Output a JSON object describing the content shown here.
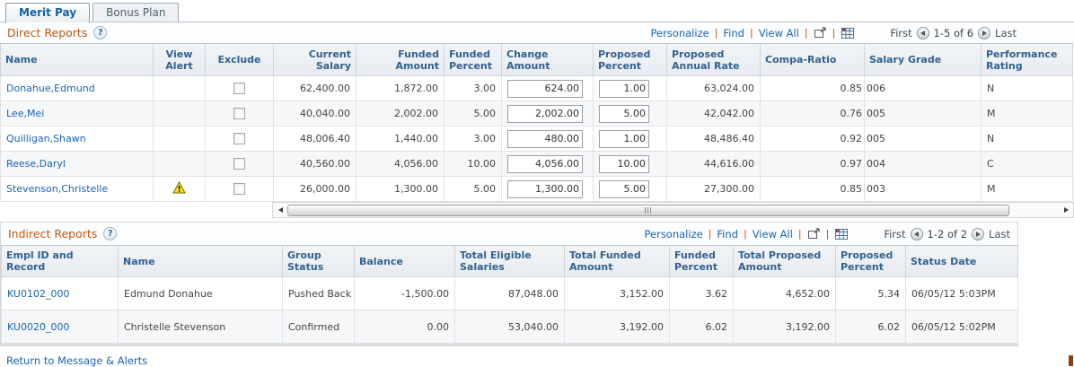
{
  "tabs": [
    {
      "label": "Merit Pay"
    },
    {
      "label": "Bonus Plan"
    }
  ],
  "direct_reports": {
    "title": "Direct Reports",
    "help_icon": "?",
    "toolbar": {
      "personalize": "Personalize",
      "find": "Find",
      "view_all": "View All",
      "first": "First",
      "range": "1-5 of 6",
      "last": "Last"
    },
    "columns": [
      "Name",
      "View Alert",
      "Exclude",
      "Current Salary",
      "Funded Amount",
      "Funded Percent",
      "Change Amount",
      "Proposed Percent",
      "Proposed Annual Rate",
      "Compa-Ratio",
      "Salary Grade",
      "Performance Rating"
    ],
    "rows": [
      {
        "name": "Donahue,Edmund",
        "view_alert": false,
        "exclude_checked": false,
        "current_salary": "62,400.00",
        "funded_amount": "1,872.00",
        "funded_percent": "3.00",
        "change_amount": "624.00",
        "proposed_percent": "1.00",
        "proposed_annual_rate": "63,024.00",
        "compa_ratio": "0.85",
        "salary_grade": "006",
        "performance_rating": "N"
      },
      {
        "name": "Lee,Mei",
        "view_alert": false,
        "exclude_checked": false,
        "current_salary": "40,040.00",
        "funded_amount": "2,002.00",
        "funded_percent": "5.00",
        "change_amount": "2,002.00",
        "proposed_percent": "5.00",
        "proposed_annual_rate": "42,042.00",
        "compa_ratio": "0.76",
        "salary_grade": "005",
        "performance_rating": "M"
      },
      {
        "name": "Quilligan,Shawn",
        "view_alert": false,
        "exclude_checked": false,
        "current_salary": "48,006.40",
        "funded_amount": "1,440.00",
        "funded_percent": "3.00",
        "change_amount": "480.00",
        "proposed_percent": "1.00",
        "proposed_annual_rate": "48,486.40",
        "compa_ratio": "0.92",
        "salary_grade": "005",
        "performance_rating": "N"
      },
      {
        "name": "Reese,Daryl",
        "view_alert": false,
        "exclude_checked": false,
        "current_salary": "40,560.00",
        "funded_amount": "4,056.00",
        "funded_percent": "10.00",
        "change_amount": "4,056.00",
        "proposed_percent": "10.00",
        "proposed_annual_rate": "44,616.00",
        "compa_ratio": "0.97",
        "salary_grade": "004",
        "performance_rating": "C"
      },
      {
        "name": "Stevenson,Christelle",
        "view_alert": true,
        "exclude_checked": false,
        "current_salary": "26,000.00",
        "funded_amount": "1,300.00",
        "funded_percent": "5.00",
        "change_amount": "1,300.00",
        "proposed_percent": "5.00",
        "proposed_annual_rate": "27,300.00",
        "compa_ratio": "0.85",
        "salary_grade": "003",
        "performance_rating": "M"
      }
    ]
  },
  "indirect_reports": {
    "title": "Indirect Reports",
    "help_icon": "?",
    "toolbar": {
      "personalize": "Personalize",
      "find": "Find",
      "view_all": "View All",
      "first": "First",
      "range": "1-2 of 2",
      "last": "Last"
    },
    "columns": [
      "Empl ID and Record",
      "Name",
      "Group Status",
      "Balance",
      "Total Eligible Salaries",
      "Total Funded Amount",
      "Funded Percent",
      "Total Proposed Amount",
      "Proposed Percent",
      "Status Date"
    ],
    "rows": [
      {
        "empl_id": "KU0102_000",
        "name": "Edmund Donahue",
        "group_status": "Pushed Back",
        "balance": "-1,500.00",
        "total_eligible_salaries": "87,048.00",
        "total_funded_amount": "3,152.00",
        "funded_percent": "3.62",
        "total_proposed_amount": "4,652.00",
        "proposed_percent": "5.34",
        "status_date": "06/05/12 5:03PM"
      },
      {
        "empl_id": "KU0020_000",
        "name": "Christelle Stevenson",
        "group_status": "Confirmed",
        "balance": "0.00",
        "total_eligible_salaries": "53,040.00",
        "total_funded_amount": "3,192.00",
        "funded_percent": "6.02",
        "total_proposed_amount": "3,192.00",
        "proposed_percent": "6.02",
        "status_date": "06/05/12 5:02PM"
      }
    ]
  },
  "footer": {
    "return_link": "Return to Message & Alerts"
  },
  "colors": {
    "section_title": "#c0570f",
    "link": "#1b62b5",
    "header_text": "#33618f",
    "separator": "#cf4f0c",
    "warning_yellow": "#ffe11a",
    "corner_marker": "#8f4303"
  }
}
